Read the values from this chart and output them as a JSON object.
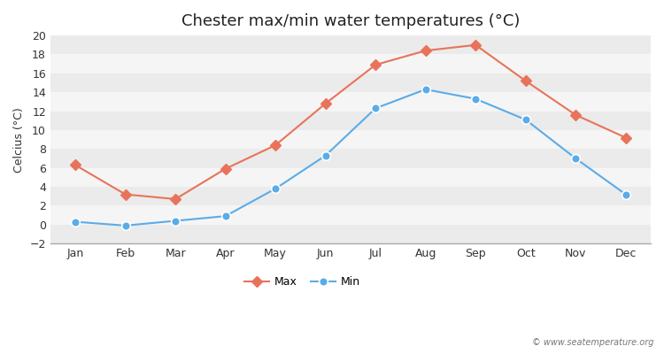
{
  "title": "Chester max/min water temperatures (°C)",
  "ylabel": "Celcius (°C)",
  "months": [
    "Jan",
    "Feb",
    "Mar",
    "Apr",
    "May",
    "Jun",
    "Jul",
    "Aug",
    "Sep",
    "Oct",
    "Nov",
    "Dec"
  ],
  "max_temps": [
    6.3,
    3.2,
    2.7,
    5.9,
    8.4,
    12.8,
    16.9,
    18.4,
    19.0,
    15.2,
    11.6,
    9.2
  ],
  "min_temps": [
    0.3,
    -0.1,
    0.4,
    0.9,
    3.8,
    7.3,
    12.3,
    14.3,
    13.3,
    11.1,
    7.0,
    3.2
  ],
  "max_color": "#E8735A",
  "min_color": "#5AACE8",
  "max_label": "Max",
  "min_label": "Min",
  "ylim": [
    -2,
    20
  ],
  "yticks": [
    -2,
    0,
    2,
    4,
    6,
    8,
    10,
    12,
    14,
    16,
    18,
    20
  ],
  "figure_bg": "#ffffff",
  "plot_bg_light": "#ebebeb",
  "plot_bg_dark": "#f5f5f5",
  "title_fontsize": 13,
  "axis_label_fontsize": 9,
  "tick_fontsize": 9,
  "legend_fontsize": 9,
  "watermark": "© www.seatemperature.org",
  "marker_size_max": 6,
  "marker_size_min": 7,
  "line_width": 1.5
}
